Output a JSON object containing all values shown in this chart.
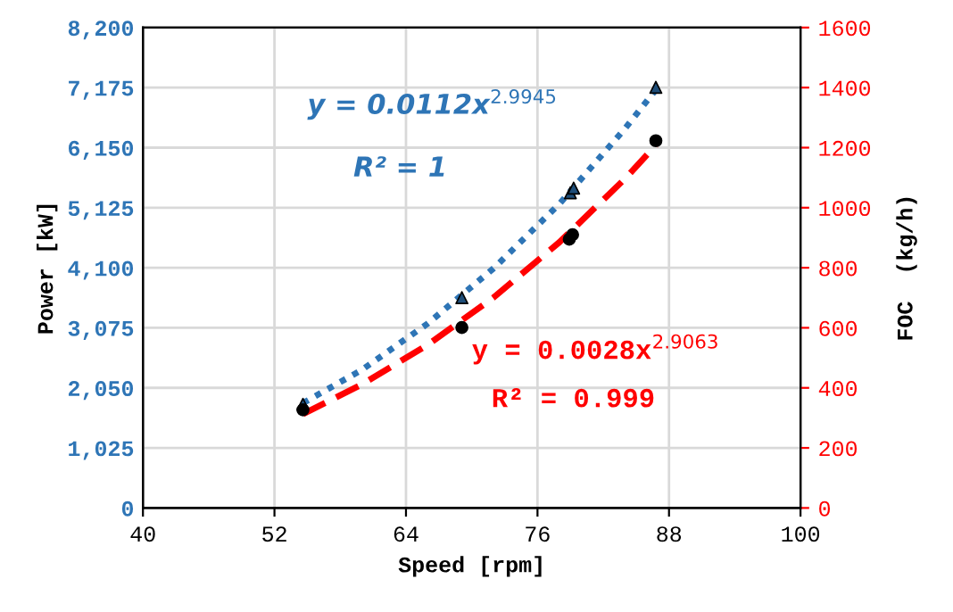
{
  "chart_data": {
    "type": "scatter",
    "xlabel": "Speed [rpm]",
    "ylabel": "Power [kW]",
    "y2label": "FOC  (kg/h)",
    "xlim": [
      40,
      100
    ],
    "xticks": [
      40,
      52,
      64,
      76,
      88,
      100
    ],
    "ylim": [
      0,
      8200
    ],
    "yticks": [
      0,
      {
        "value": 1025,
        "label": "1,025"
      },
      {
        "value": 2050,
        "label": "2,050"
      },
      {
        "value": 3075,
        "label": "3,075"
      },
      {
        "value": 4100,
        "label": "4,100"
      },
      {
        "value": 5125,
        "label": "5,125"
      },
      {
        "value": 6150,
        "label": "6,150"
      },
      {
        "value": 7175,
        "label": "7,175"
      },
      {
        "value": 8200,
        "label": "8,200"
      }
    ],
    "y2lim": [
      0,
      1600
    ],
    "y2ticks": [
      0,
      200,
      400,
      600,
      800,
      1000,
      1200,
      1400,
      1600
    ],
    "grid": true,
    "legend": false,
    "series": [
      {
        "type": "line",
        "color": "#2e75b6",
        "line_style": "dotted",
        "marker": "none",
        "x": [
          54.6,
          60,
          66,
          72,
          78,
          84,
          86.8
        ],
        "values": [
          1790,
          2360,
          3150,
          4090,
          5190,
          6480,
          7140
        ]
      },
      {
        "type": "line",
        "axis": "y2",
        "color": "#ff0000",
        "line_style": "dashed",
        "marker": "none",
        "x": [
          54.6,
          60,
          66,
          72,
          78,
          84,
          86.8
        ],
        "values": [
          313,
          412,
          544,
          701,
          885,
          1097,
          1208
        ]
      },
      {
        "color": "#1f4e79",
        "marker": "triangle",
        "x": [
          54.6,
          69.1,
          79.0,
          79.3,
          86.8
        ],
        "values": [
          1770,
          3590,
          5380,
          5460,
          7180
        ]
      },
      {
        "axis": "y2",
        "color": "#000000",
        "marker": "circle",
        "x": [
          54.6,
          69.1,
          78.9,
          79.2,
          86.8
        ],
        "values": [
          327,
          601,
          895,
          910,
          1223
        ]
      }
    ],
    "annotations": [
      "y = 0.0112x$^{2.9945}$",
      "R² = 1",
      "y = 0.0028x$^{2.9063}$",
      "R² = 0.999"
    ]
  }
}
